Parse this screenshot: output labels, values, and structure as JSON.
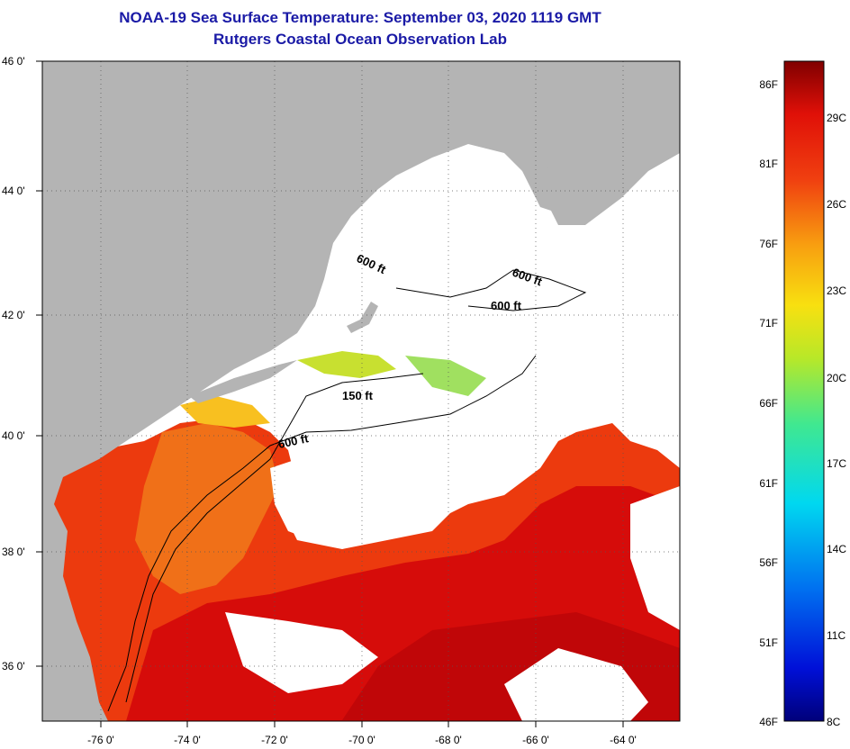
{
  "title_line1": "NOAA-19 Sea Surface Temperature:  September 03, 2020 1119 GMT",
  "title_line2": "Rutgers Coastal Ocean Observation Lab",
  "lat_labels": [
    "46 0'",
    "44 0'",
    "42 0'",
    "40 0'",
    "38 0'",
    "36 0'"
  ],
  "lon_labels": [
    "-76 0'",
    "-74 0'",
    "-72 0'",
    "-70 0'",
    "-68 0'",
    "-66 0'",
    "-64 0'"
  ],
  "depth_labels": [
    "600 ft",
    "600 ft",
    "600 ft",
    "150 ft",
    "600 ft"
  ],
  "colorbar": {
    "fahrenheit": [
      "86F",
      "81F",
      "76F",
      "71F",
      "66F",
      "61F",
      "56F",
      "51F",
      "46F"
    ],
    "celsius": [
      "29C",
      "26C",
      "23C",
      "20C",
      "17C",
      "14C",
      "11C",
      "8C"
    ]
  },
  "colors": {
    "title": "#1a1aa6",
    "land": "#b4b4b4",
    "cloud": "#ffffff",
    "warm": "#e8200c",
    "hot": "#d00808",
    "mid": "#f05a10"
  }
}
